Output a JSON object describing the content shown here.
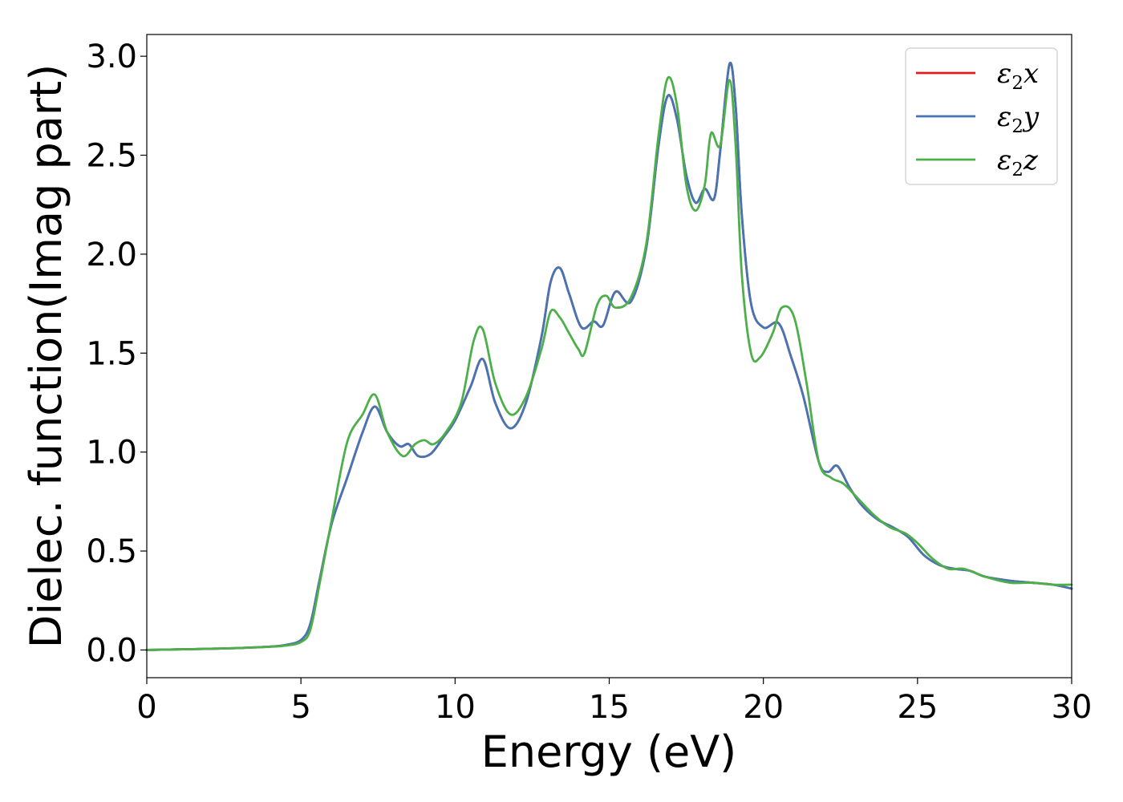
{
  "chart_data": {
    "type": "line",
    "title": "",
    "xlabel": "Energy (eV)",
    "ylabel": "Dielec. function(Imag part)",
    "xlim": [
      0,
      30
    ],
    "ylim": [
      -0.14,
      3.11
    ],
    "xticks": [
      "0",
      "5",
      "10",
      "15",
      "20",
      "25",
      "30"
    ],
    "yticks": [
      "0.0",
      "0.5",
      "1.0",
      "1.5",
      "2.0",
      "2.5",
      "3.0"
    ],
    "grid": false,
    "legend_position": "top-right",
    "legend": [
      {
        "name": "ε2x",
        "base": "ε",
        "sub": "2",
        "var": "x"
      },
      {
        "name": "ε2y",
        "base": "ε",
        "sub": "2",
        "var": "y"
      },
      {
        "name": "ε2z",
        "base": "ε",
        "sub": "2",
        "var": "z"
      }
    ],
    "series": [
      {
        "name": "ε2x",
        "color": "#e41a1c",
        "x": [
          0,
          1,
          2,
          3,
          4,
          4.5,
          5,
          5.3,
          5.6,
          6.0,
          6.5,
          7.0,
          7.4,
          7.8,
          8.2,
          8.5,
          8.8,
          9.2,
          9.6,
          10.0,
          10.5,
          10.9,
          11.3,
          11.8,
          12.3,
          12.8,
          13.1,
          13.4,
          13.7,
          14.1,
          14.5,
          14.8,
          15.2,
          15.7,
          16.2,
          16.6,
          16.9,
          17.2,
          17.5,
          17.8,
          18.1,
          18.4,
          18.6,
          18.9,
          19.1,
          19.3,
          19.6,
          20.0,
          20.5,
          20.9,
          21.3,
          21.8,
          22.1,
          22.4,
          22.8,
          23.2,
          23.7,
          24.2,
          24.7,
          25.2,
          25.7,
          26.2,
          26.7,
          27.2,
          28.0,
          28.7,
          29.4,
          30.0
        ],
        "y": [
          0.0,
          0.003,
          0.006,
          0.01,
          0.017,
          0.025,
          0.05,
          0.13,
          0.35,
          0.64,
          0.87,
          1.1,
          1.23,
          1.1,
          1.03,
          1.04,
          0.98,
          0.99,
          1.07,
          1.16,
          1.33,
          1.47,
          1.25,
          1.12,
          1.25,
          1.58,
          1.86,
          1.93,
          1.8,
          1.63,
          1.66,
          1.64,
          1.81,
          1.76,
          2.03,
          2.55,
          2.8,
          2.68,
          2.4,
          2.26,
          2.33,
          2.28,
          2.52,
          2.96,
          2.75,
          2.2,
          1.75,
          1.63,
          1.65,
          1.48,
          1.28,
          0.95,
          0.9,
          0.93,
          0.82,
          0.73,
          0.66,
          0.62,
          0.57,
          0.48,
          0.43,
          0.41,
          0.4,
          0.37,
          0.35,
          0.34,
          0.33,
          0.31
        ]
      },
      {
        "name": "ε2y",
        "color": "#4575b4",
        "x": [
          0,
          1,
          2,
          3,
          4,
          4.5,
          5,
          5.3,
          5.6,
          6.0,
          6.5,
          7.0,
          7.4,
          7.8,
          8.2,
          8.5,
          8.8,
          9.2,
          9.6,
          10.0,
          10.5,
          10.9,
          11.3,
          11.8,
          12.3,
          12.8,
          13.1,
          13.4,
          13.7,
          14.1,
          14.5,
          14.8,
          15.2,
          15.7,
          16.2,
          16.6,
          16.9,
          17.2,
          17.5,
          17.8,
          18.1,
          18.4,
          18.6,
          18.9,
          19.1,
          19.3,
          19.6,
          20.0,
          20.5,
          20.9,
          21.3,
          21.8,
          22.1,
          22.4,
          22.8,
          23.2,
          23.7,
          24.2,
          24.7,
          25.2,
          25.7,
          26.2,
          26.7,
          27.2,
          28.0,
          28.7,
          29.4,
          30.0
        ],
        "y": [
          0.0,
          0.003,
          0.006,
          0.01,
          0.017,
          0.025,
          0.05,
          0.13,
          0.35,
          0.64,
          0.87,
          1.1,
          1.23,
          1.1,
          1.03,
          1.04,
          0.98,
          0.99,
          1.07,
          1.16,
          1.33,
          1.47,
          1.25,
          1.12,
          1.25,
          1.58,
          1.86,
          1.93,
          1.8,
          1.63,
          1.66,
          1.64,
          1.81,
          1.76,
          2.03,
          2.55,
          2.8,
          2.68,
          2.4,
          2.26,
          2.33,
          2.28,
          2.52,
          2.96,
          2.75,
          2.2,
          1.75,
          1.63,
          1.65,
          1.48,
          1.28,
          0.95,
          0.9,
          0.93,
          0.82,
          0.73,
          0.66,
          0.62,
          0.57,
          0.48,
          0.43,
          0.41,
          0.4,
          0.37,
          0.35,
          0.34,
          0.33,
          0.31
        ]
      },
      {
        "name": "ε2z",
        "color": "#4daf4a",
        "x": [
          0,
          1,
          2,
          3,
          4,
          4.5,
          5,
          5.3,
          5.6,
          6.0,
          6.5,
          7.0,
          7.4,
          7.8,
          8.3,
          8.7,
          9.0,
          9.3,
          9.7,
          10.2,
          10.6,
          10.9,
          11.3,
          11.8,
          12.3,
          12.8,
          13.1,
          13.4,
          13.7,
          14.0,
          14.2,
          14.6,
          14.9,
          15.2,
          15.7,
          16.2,
          16.6,
          16.9,
          17.2,
          17.5,
          17.8,
          18.1,
          18.3,
          18.6,
          18.9,
          19.1,
          19.3,
          19.6,
          19.9,
          20.3,
          20.6,
          21.0,
          21.4,
          21.8,
          22.2,
          22.6,
          23.1,
          23.6,
          24.1,
          24.6,
          25.0,
          25.5,
          26.0,
          26.5,
          27.2,
          28.0,
          28.7,
          29.4,
          30.0
        ],
        "y": [
          0.0,
          0.003,
          0.006,
          0.01,
          0.016,
          0.022,
          0.04,
          0.1,
          0.33,
          0.66,
          1.05,
          1.19,
          1.29,
          1.1,
          0.98,
          1.04,
          1.06,
          1.04,
          1.1,
          1.25,
          1.56,
          1.62,
          1.35,
          1.19,
          1.28,
          1.52,
          1.71,
          1.68,
          1.6,
          1.52,
          1.5,
          1.74,
          1.79,
          1.73,
          1.78,
          2.05,
          2.6,
          2.89,
          2.75,
          2.35,
          2.22,
          2.35,
          2.61,
          2.55,
          2.88,
          2.55,
          1.9,
          1.5,
          1.48,
          1.6,
          1.73,
          1.68,
          1.35,
          0.95,
          0.87,
          0.84,
          0.76,
          0.68,
          0.62,
          0.59,
          0.54,
          0.46,
          0.41,
          0.41,
          0.37,
          0.34,
          0.34,
          0.33,
          0.33
        ]
      }
    ]
  }
}
